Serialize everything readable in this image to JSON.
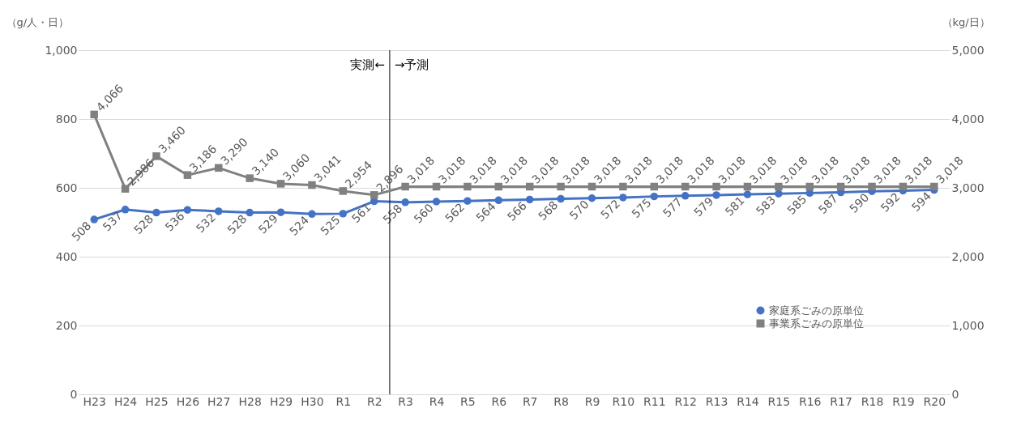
{
  "chart_data": {
    "type": "line",
    "ylabel": "（g/人・日）",
    "y2label": "（kg/日）",
    "categories": [
      "H23",
      "H24",
      "H25",
      "H26",
      "H27",
      "H28",
      "H29",
      "H30",
      "R1",
      "R2",
      "R3",
      "R4",
      "R5",
      "R6",
      "R7",
      "R8",
      "R9",
      "R10",
      "R11",
      "R12",
      "R13",
      "R14",
      "R15",
      "R16",
      "R17",
      "R18",
      "R19",
      "R20"
    ],
    "series": [
      {
        "name": "家庭系ごみの原単位",
        "color": "#4472c4",
        "marker": "circle",
        "values": [
          508,
          537,
          528,
          536,
          532,
          528,
          529,
          524,
          525,
          561,
          558,
          560,
          562,
          564,
          566,
          568,
          570,
          572,
          575,
          577,
          579,
          581,
          583,
          585,
          587,
          590,
          592,
          594
        ]
      },
      {
        "name": "事業系ごみの原単位",
        "color": "#808080",
        "marker": "square",
        "axis": "y2",
        "values": [
          4066,
          2986,
          3460,
          3186,
          3290,
          3140,
          3060,
          3041,
          2954,
          2896,
          3018,
          3018,
          3018,
          3018,
          3018,
          3018,
          3018,
          3018,
          3018,
          3018,
          3018,
          3018,
          3018,
          3018,
          3018,
          3018,
          3018,
          3018
        ],
        "value_labels": [
          "4,066",
          "2,986",
          "3,460",
          "3,186",
          "3,290",
          "3,140",
          "3,060",
          "3,041",
          "2,954",
          "2,896",
          "3,018",
          "3,018",
          "3,018",
          "3,018",
          "3,018",
          "3,018",
          "3,018",
          "3,018",
          "3,018",
          "3,018",
          "3,018",
          "3,018",
          "3,018",
          "3,018",
          "3,018",
          "3,018",
          "3,018",
          "3,018"
        ]
      }
    ],
    "ylim": [
      0,
      1000
    ],
    "yticks": [
      0,
      200,
      400,
      600,
      800,
      {
        "value": 1000,
        "label": "1,000"
      }
    ],
    "y2lim": [
      0,
      5000
    ],
    "y2ticks": [
      0,
      {
        "value": 1000,
        "label": "1,000"
      },
      {
        "value": 2000,
        "label": "2,000"
      },
      {
        "value": 3000,
        "label": "3,000"
      },
      {
        "value": 4000,
        "label": "4,000"
      },
      {
        "value": 5000,
        "label": "5,000"
      }
    ],
    "ref_lines": [
      {
        "axis": "x",
        "value": "R2",
        "color": "#000000"
      }
    ],
    "annotations": [
      "実測←",
      "→予測"
    ],
    "data_labels": true,
    "grid": "y",
    "legend": "bottom right"
  }
}
